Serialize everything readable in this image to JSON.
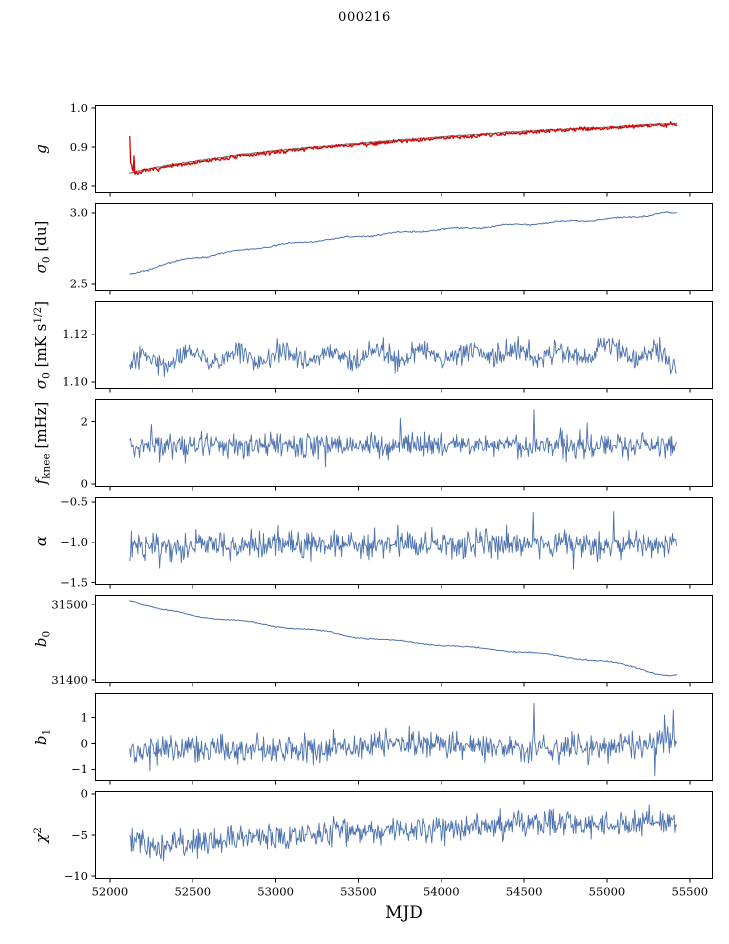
{
  "chart_data": {
    "type": "line",
    "title": "000216",
    "xlabel": "MJD",
    "xlim": [
      51910,
      55640
    ],
    "x_start": 52120,
    "x_end": 55420,
    "xticks": [
      52000,
      52500,
      53000,
      53500,
      54000,
      54500,
      55000,
      55500
    ],
    "xtick_labels": [
      "52000",
      "52500",
      "53000",
      "53500",
      "54000",
      "54500",
      "55000",
      "55500"
    ],
    "grid": false,
    "legend": "none",
    "subplots": [
      {
        "name": "g",
        "ylabel_segments": [
          {
            "t": "g",
            "it": true
          }
        ],
        "ylim": [
          0.782,
          1.008
        ],
        "ytick_values": [
          0.8,
          0.9,
          1.0
        ],
        "ytick_labels": [
          "0.8",
          "0.9",
          "1.0"
        ],
        "series": [
          {
            "name": "model",
            "color": "#808080",
            "width": 1.4,
            "n": 380,
            "seed": 11,
            "noise": 0.0006,
            "keypoints": [
              [
                52124,
                0.833
              ],
              [
                52200,
                0.841
              ],
              [
                52350,
                0.853
              ],
              [
                52500,
                0.863
              ],
              [
                52650,
                0.872
              ],
              [
                52800,
                0.881
              ],
              [
                53000,
                0.891
              ],
              [
                53200,
                0.899
              ],
              [
                53400,
                0.906
              ],
              [
                53600,
                0.913
              ],
              [
                53800,
                0.92
              ],
              [
                54000,
                0.926
              ],
              [
                54200,
                0.932
              ],
              [
                54400,
                0.938
              ],
              [
                54600,
                0.943
              ],
              [
                54800,
                0.947
              ],
              [
                55000,
                0.951
              ],
              [
                55150,
                0.955
              ],
              [
                55300,
                0.959
              ],
              [
                55420,
                0.96
              ]
            ]
          },
          {
            "name": "gain",
            "color": "#dd0000",
            "width": 1.3,
            "n": 650,
            "seed": 7,
            "noise": 0.0025,
            "burst": {
              "x_end": 52148,
              "amp": 0.05
            },
            "keypoints": [
              [
                52118,
                0.944
              ],
              [
                52124,
                0.828
              ],
              [
                52200,
                0.837
              ],
              [
                52350,
                0.849
              ],
              [
                52500,
                0.859
              ],
              [
                52650,
                0.868
              ],
              [
                52800,
                0.877
              ],
              [
                53000,
                0.887
              ],
              [
                53200,
                0.896
              ],
              [
                53400,
                0.903
              ],
              [
                53600,
                0.91
              ],
              [
                53800,
                0.917
              ],
              [
                54000,
                0.923
              ],
              [
                54200,
                0.929
              ],
              [
                54400,
                0.935
              ],
              [
                54600,
                0.94
              ],
              [
                54800,
                0.945
              ],
              [
                55000,
                0.949
              ],
              [
                55150,
                0.953
              ],
              [
                55300,
                0.957
              ],
              [
                55420,
                0.958
              ]
            ],
            "spikes": [
              [
                55360,
                0.951
              ],
              [
                55385,
                0.965
              ],
              [
                55405,
                0.96
              ]
            ]
          }
        ]
      },
      {
        "name": "sigma0-du",
        "ylabel_segments": [
          {
            "t": "σ",
            "it": true
          },
          {
            "t": "0",
            "sub": true
          },
          {
            "t": " [du]"
          }
        ],
        "ylim": [
          2.45,
          3.07
        ],
        "ytick_values": [
          2.5,
          3.0
        ],
        "ytick_labels": [
          "2.5",
          "3.0"
        ],
        "series": [
          {
            "name": "sigma0-du",
            "color": "#4c72b0",
            "width": 1.0,
            "n": 420,
            "seed": 21,
            "noise": 0.003,
            "wiggle": [
              0.006,
              330
            ],
            "keypoints": [
              [
                52130,
                2.565
              ],
              [
                52300,
                2.63
              ],
              [
                52500,
                2.68
              ],
              [
                52700,
                2.72
              ],
              [
                52900,
                2.755
              ],
              [
                53100,
                2.785
              ],
              [
                53300,
                2.81
              ],
              [
                53500,
                2.835
              ],
              [
                53700,
                2.855
              ],
              [
                53900,
                2.875
              ],
              [
                54100,
                2.89
              ],
              [
                54300,
                2.905
              ],
              [
                54500,
                2.92
              ],
              [
                54700,
                2.935
              ],
              [
                54900,
                2.95
              ],
              [
                55100,
                2.965
              ],
              [
                55250,
                2.985
              ],
              [
                55350,
                3.0
              ],
              [
                55420,
                2.995
              ]
            ]
          }
        ]
      },
      {
        "name": "sigma0-mk",
        "ylabel_segments": [
          {
            "t": "σ",
            "it": true
          },
          {
            "t": "0",
            "sub": true
          },
          {
            "t": " [mK s"
          },
          {
            "t": "1/2",
            "sup": true
          },
          {
            "t": "]"
          }
        ],
        "ylim": [
          1.097,
          1.134
        ],
        "ytick_values": [
          1.1,
          1.12
        ],
        "ytick_labels": [
          "1.10",
          "1.12"
        ],
        "series": [
          {
            "name": "sigma0-mk",
            "color": "#4c72b0",
            "width": 0.9,
            "n": 650,
            "seed": 31,
            "noise": 0.0023,
            "wiggle": [
              0.0025,
              280
            ],
            "keypoints": [
              [
                52130,
                1.107
              ],
              [
                52400,
                1.111
              ],
              [
                53000,
                1.11
              ],
              [
                53500,
                1.111
              ],
              [
                54000,
                1.111
              ],
              [
                54500,
                1.112
              ],
              [
                54800,
                1.112
              ],
              [
                55100,
                1.113
              ],
              [
                55300,
                1.111
              ],
              [
                55420,
                1.109
              ]
            ]
          }
        ]
      },
      {
        "name": "fknee",
        "ylabel_segments": [
          {
            "t": "f",
            "it": true
          },
          {
            "t": "knee",
            "sub": true
          },
          {
            "t": " [mHz]"
          }
        ],
        "ylim": [
          -0.1,
          2.72
        ],
        "ytick_values": [
          0,
          2
        ],
        "ytick_labels": [
          "0",
          "2"
        ],
        "series": [
          {
            "name": "fknee",
            "color": "#4c72b0",
            "width": 0.9,
            "n": 680,
            "seed": 41,
            "noise": 0.2,
            "keypoints": [
              [
                52130,
                1.22
              ],
              [
                53000,
                1.22
              ],
              [
                54000,
                1.25
              ],
              [
                55420,
                1.25
              ]
            ],
            "spikes": [
              [
                52250,
                1.9
              ],
              [
                53300,
                0.55
              ],
              [
                53755,
                2.1
              ],
              [
                54560,
                2.38
              ],
              [
                54880,
                1.95
              ]
            ]
          }
        ]
      },
      {
        "name": "alpha",
        "ylabel_segments": [
          {
            "t": "α",
            "it": true
          }
        ],
        "ylim": [
          -1.53,
          -0.44
        ],
        "ytick_values": [
          -1.5,
          -1.0,
          -0.5
        ],
        "ytick_labels": [
          "−1.5",
          "−1.0",
          "−0.5"
        ],
        "series": [
          {
            "name": "alpha",
            "color": "#4c72b0",
            "width": 0.9,
            "n": 680,
            "seed": 51,
            "noise": 0.085,
            "keypoints": [
              [
                52130,
                -1.04
              ],
              [
                53500,
                -1.03
              ],
              [
                55420,
                -1.02
              ]
            ],
            "spikes": [
              [
                52300,
                -1.32
              ],
              [
                54555,
                -0.63
              ],
              [
                54800,
                -1.33
              ],
              [
                55040,
                -0.62
              ]
            ]
          }
        ]
      },
      {
        "name": "b0",
        "ylabel_segments": [
          {
            "t": "b",
            "it": true
          },
          {
            "t": "0",
            "sub": true
          }
        ],
        "ylim": [
          31396,
          31513
        ],
        "ytick_values": [
          31400,
          31500
        ],
        "ytick_labels": [
          "31400",
          "31500"
        ],
        "series": [
          {
            "name": "b0",
            "color": "#4c72b0",
            "width": 1.0,
            "n": 420,
            "seed": 61,
            "noise": 0.4,
            "wiggle": [
              1.2,
              450
            ],
            "keypoints": [
              [
                52130,
                31506
              ],
              [
                52300,
                31494
              ],
              [
                52500,
                31486
              ],
              [
                52700,
                31480
              ],
              [
                52900,
                31475
              ],
              [
                53100,
                31469
              ],
              [
                53300,
                31464
              ],
              [
                53500,
                31457
              ],
              [
                53700,
                31452
              ],
              [
                53900,
                31449
              ],
              [
                54100,
                31444
              ],
              [
                54300,
                31441
              ],
              [
                54500,
                31437
              ],
              [
                54700,
                31432
              ],
              [
                54900,
                31427
              ],
              [
                55000,
                31424
              ],
              [
                55100,
                31420
              ],
              [
                55200,
                31415
              ],
              [
                55300,
                31409
              ],
              [
                55380,
                31406
              ],
              [
                55420,
                31407
              ]
            ]
          }
        ]
      },
      {
        "name": "b1",
        "ylabel_segments": [
          {
            "t": "b",
            "it": true
          },
          {
            "t": "1",
            "sub": true
          }
        ],
        "ylim": [
          -1.45,
          1.95
        ],
        "ytick_values": [
          -1,
          0,
          1
        ],
        "ytick_labels": [
          "−1",
          "0",
          "1"
        ],
        "series": [
          {
            "name": "b1",
            "color": "#4c72b0",
            "width": 0.9,
            "n": 680,
            "seed": 71,
            "noise": 0.26,
            "keypoints": [
              [
                52130,
                -0.3
              ],
              [
                52400,
                -0.25
              ],
              [
                53000,
                -0.2
              ],
              [
                53600,
                -0.05
              ],
              [
                53900,
                0.05
              ],
              [
                54100,
                -0.1
              ],
              [
                54600,
                -0.2
              ],
              [
                55000,
                -0.12
              ],
              [
                55250,
                0.0
              ],
              [
                55420,
                0.15
              ]
            ],
            "spikes": [
              [
                52240,
                -1.05
              ],
              [
                54560,
                1.55
              ],
              [
                55290,
                -1.25
              ],
              [
                55345,
                1.1
              ],
              [
                55400,
                1.3
              ]
            ]
          }
        ]
      },
      {
        "name": "chi2",
        "ylabel_segments": [
          {
            "t": "χ",
            "it": true
          },
          {
            "t": "2",
            "sup": true
          }
        ],
        "ylim": [
          -10.35,
          0.35
        ],
        "ytick_values": [
          -10,
          -5,
          0
        ],
        "ytick_labels": [
          "−10",
          "−5",
          "0"
        ],
        "series": [
          {
            "name": "chi2",
            "color": "#4c72b0",
            "width": 0.9,
            "n": 680,
            "seed": 81,
            "noise": 0.8,
            "keypoints": [
              [
                52130,
                -5.2
              ],
              [
                52260,
                -6.4
              ],
              [
                52450,
                -6.1
              ],
              [
                52700,
                -5.6
              ],
              [
                53000,
                -5.1
              ],
              [
                53400,
                -4.7
              ],
              [
                53800,
                -4.4
              ],
              [
                54200,
                -4.0
              ],
              [
                54600,
                -3.7
              ],
              [
                55000,
                -3.8
              ],
              [
                55420,
                -3.5
              ]
            ],
            "spikes": [
              [
                52310,
                -7.9
              ],
              [
                54650,
                -1.9
              ]
            ]
          }
        ]
      }
    ]
  }
}
